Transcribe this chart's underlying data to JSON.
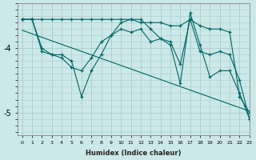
{
  "xlabel": "Humidex (Indice chaleur)",
  "bg_color": "#cce8e8",
  "grid_color": "#aacccc",
  "line_color": "#006666",
  "xlim": [
    -0.5,
    23
  ],
  "ylim": [
    -5.35,
    -3.3
  ],
  "yticks": [
    -5.0,
    -4.0
  ],
  "ytick_labels": [
    "-5",
    "-4"
  ],
  "xticks": [
    0,
    1,
    2,
    3,
    4,
    5,
    6,
    7,
    8,
    9,
    10,
    11,
    12,
    13,
    14,
    15,
    16,
    17,
    18,
    19,
    20,
    21,
    22,
    23
  ],
  "series": {
    "x": [
      0,
      1,
      2,
      3,
      4,
      5,
      6,
      7,
      8,
      9,
      10,
      11,
      12,
      13,
      14,
      15,
      16,
      17,
      18,
      19,
      20,
      21,
      22,
      23
    ],
    "line1": [
      -3.55,
      -3.55,
      -3.55,
      -3.55,
      -3.55,
      -3.55,
      -3.55,
      -3.55,
      -3.55,
      -3.55,
      -3.55,
      -3.55,
      -3.6,
      -3.6,
      -3.6,
      -3.65,
      -3.65,
      -3.55,
      -3.65,
      -3.7,
      -3.7,
      -3.75,
      -4.75,
      -5.0
    ],
    "line2": [
      -3.55,
      -3.55,
      -4.0,
      -4.1,
      -4.1,
      -4.2,
      -4.75,
      -4.35,
      -4.1,
      -3.8,
      -3.6,
      -3.55,
      -3.55,
      -3.7,
      -3.85,
      -3.9,
      -4.25,
      -3.55,
      -4.05,
      -4.1,
      -4.05,
      -4.1,
      -4.5,
      -5.1
    ],
    "line3": [
      -3.55,
      -3.55,
      -4.05,
      -4.1,
      -4.15,
      -4.3,
      -4.35,
      -4.15,
      -3.9,
      -3.8,
      -3.7,
      -3.75,
      -3.7,
      -3.9,
      -3.85,
      -3.95,
      -4.55,
      -3.45,
      -3.95,
      -4.45,
      -4.35,
      -4.35,
      -4.7,
      -5.1
    ],
    "line4_x": [
      0,
      23
    ],
    "line4_y": [
      -3.72,
      -4.98
    ]
  }
}
